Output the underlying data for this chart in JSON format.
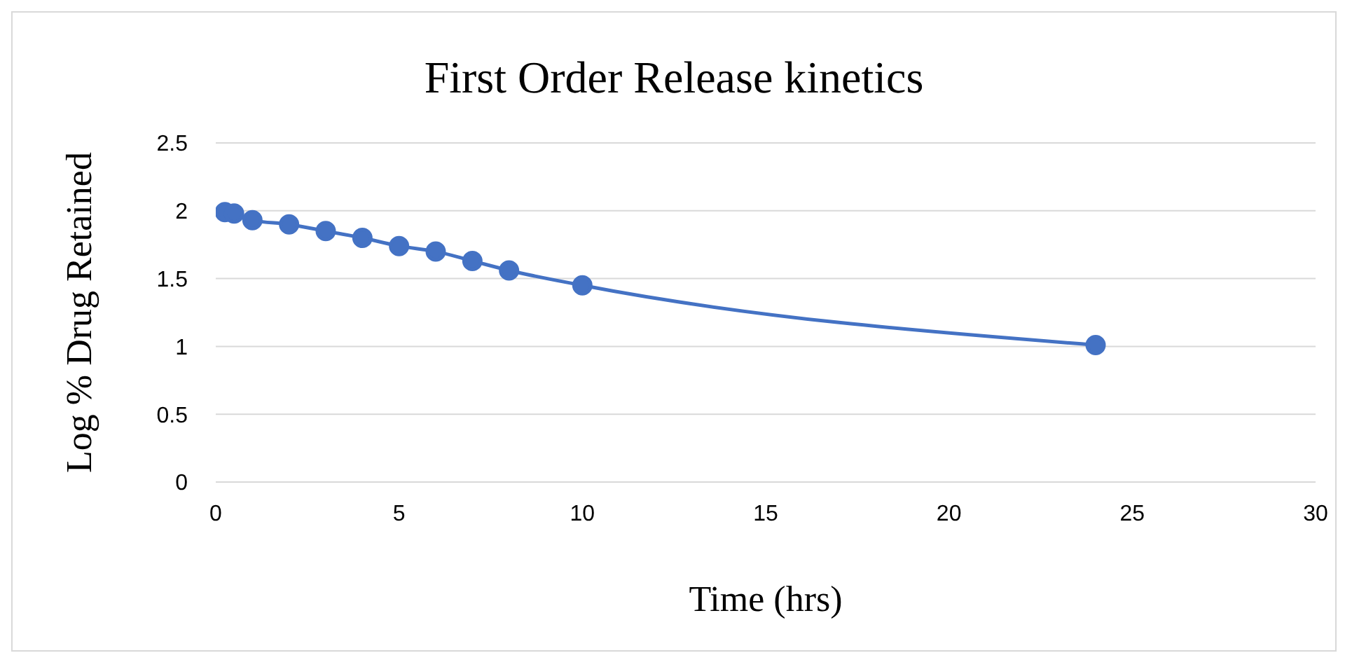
{
  "chart_data": {
    "type": "line",
    "title": "First Order Release kinetics",
    "xlabel": "Time (hrs)",
    "ylabel": "Log % Drug Retained",
    "x": [
      0.25,
      0.5,
      1,
      2,
      3,
      4,
      5,
      6,
      7,
      8,
      10,
      24
    ],
    "series": [
      {
        "color": "#4472c4",
        "values": [
          1.99,
          1.98,
          1.93,
          1.9,
          1.85,
          1.8,
          1.74,
          1.7,
          1.63,
          1.56,
          1.45,
          1.01
        ]
      }
    ],
    "xlim": [
      0,
      30
    ],
    "xticks": [
      0,
      5,
      10,
      15,
      20,
      25,
      30
    ],
    "ylim": [
      0,
      2.5
    ],
    "yticks": [
      0,
      0.5,
      1,
      1.5,
      2,
      2.5
    ],
    "grid": "y",
    "legend": false,
    "marker": "circle",
    "line_style": "solid"
  }
}
